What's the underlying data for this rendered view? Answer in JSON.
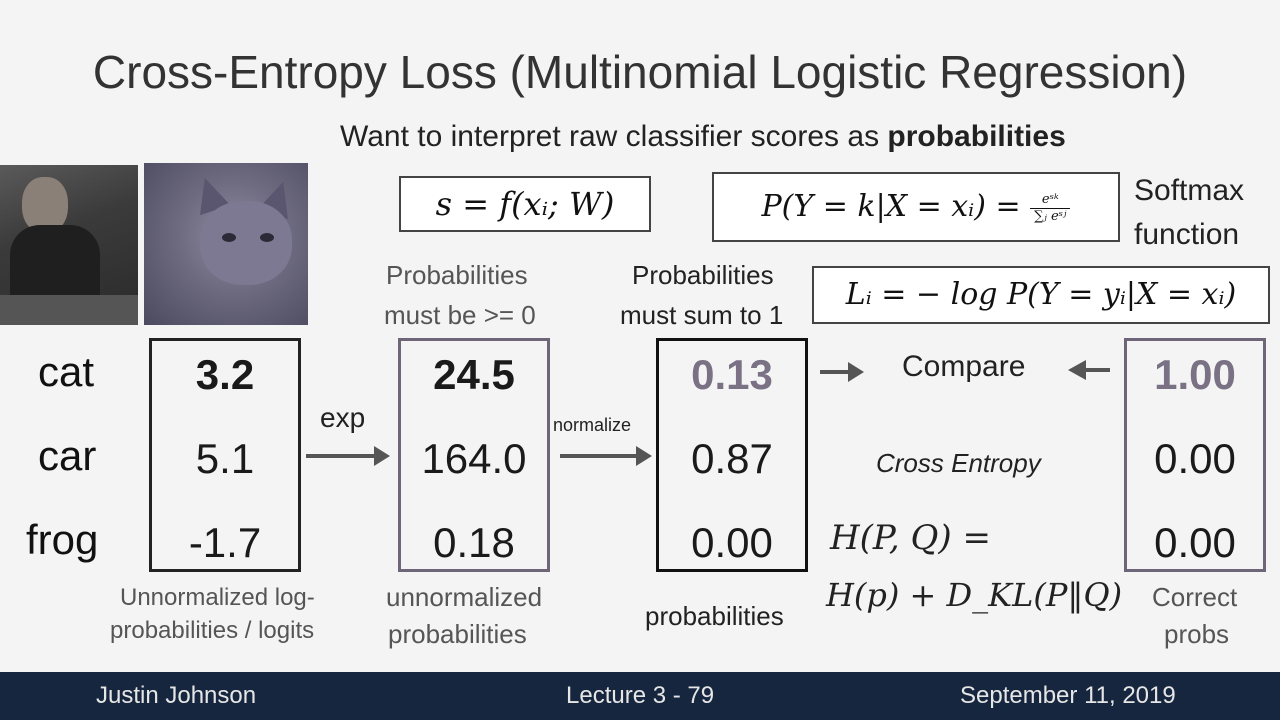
{
  "slide": {
    "title": "Cross-Entropy Loss (Multinomial Logistic Regression)",
    "subtitle_prefix": "Want to interpret raw classifier scores as ",
    "subtitle_bold": "probabilities",
    "formula_score": "s = f(xᵢ; W)",
    "formula_softmax_lhs": "P(Y = k|X = xᵢ) = ",
    "formula_softmax_num": "eˢᵏ",
    "formula_softmax_den": "∑ⱼ eˢʲ",
    "softmax_label_1": "Softmax",
    "softmax_label_2": "function",
    "formula_loss": "Lᵢ = − log P(Y = yᵢ|X = xᵢ)",
    "prob_ge0_1": "Probabilities",
    "prob_ge0_2": "must be >= 0",
    "prob_sum1_1": "Probabilities",
    "prob_sum1_2": "must sum to 1",
    "classes": [
      "cat",
      "car",
      "frog"
    ],
    "scores": [
      "3.2",
      "5.1",
      "-1.7"
    ],
    "exp_label": "exp",
    "exp_values": [
      "24.5",
      "164.0",
      "0.18"
    ],
    "normalize_label": "normalize",
    "probs": [
      "0.13",
      "0.87",
      "0.00"
    ],
    "correct": [
      "1.00",
      "0.00",
      "0.00"
    ],
    "compare_label": "Compare",
    "cross_entropy_label": "Cross Entropy",
    "entropy_formula_1": "H(P, Q) =",
    "entropy_formula_2": "H(p) + D_KL(P‖Q)",
    "caption_scores_1": "Unnormalized log-",
    "caption_scores_2": "probabilities / logits",
    "caption_exp_1": "unnormalized",
    "caption_exp_2": "probabilities",
    "caption_probs": "probabilities",
    "caption_correct_1": "Correct",
    "caption_correct_2": "probs"
  },
  "footer": {
    "author": "Justin Johnson",
    "lecture": "Lecture 3 - 79",
    "date": "September 11, 2019"
  },
  "colors": {
    "footer_bg": "#16263f",
    "highlight_purple": "#6e6678"
  }
}
